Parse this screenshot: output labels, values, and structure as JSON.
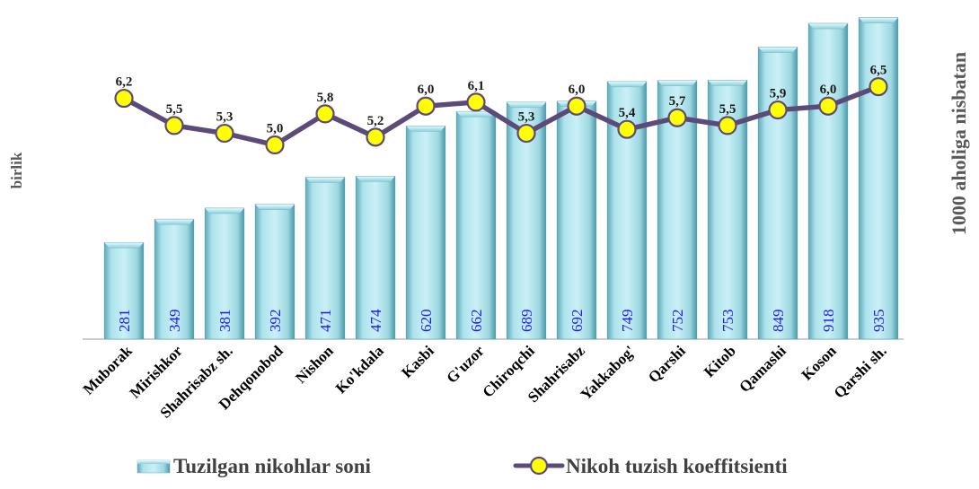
{
  "chart_data": {
    "type": "bar",
    "categories": [
      "Muborak",
      "Mirishkor",
      "Shahrisabz sh.",
      "Dehqonobod",
      "Nishon",
      "Ko'kdala",
      "Kasbi",
      "G'uzor",
      "Chiroqchi",
      "Shahrisabz",
      "Yakkabog'",
      "Qarshi",
      "Kitob",
      "Qamashi",
      "Koson",
      "Qarshi sh."
    ],
    "series": [
      {
        "name": "Tuzilgan nikohlar soni",
        "type": "bar",
        "axis": "left",
        "values": [
          281,
          349,
          381,
          392,
          471,
          474,
          620,
          662,
          689,
          692,
          749,
          752,
          753,
          849,
          918,
          935
        ],
        "labels": [
          "281",
          "349",
          "381",
          "392",
          "471",
          "474",
          "620",
          "662",
          "689",
          "692",
          "749",
          "752",
          "753",
          "849",
          "918",
          "935"
        ],
        "color": "#8fd0dc"
      },
      {
        "name": "Nikoh tuzish koeffitsienti",
        "type": "line",
        "axis": "right",
        "values": [
          6.2,
          5.5,
          5.3,
          5.0,
          5.8,
          5.2,
          6.0,
          6.1,
          5.3,
          6.0,
          5.4,
          5.7,
          5.5,
          5.9,
          6.0,
          6.5
        ],
        "labels": [
          "6,2",
          "5,5",
          "5,3",
          "5,0",
          "5,8",
          "5,2",
          "6,0",
          "6,1",
          "5,3",
          "6,0",
          "5,4",
          "5,7",
          "5,5",
          "5,9",
          "6,0",
          "6,5"
        ],
        "line_color": "#5c4a78",
        "marker_color": "#ffff00"
      }
    ],
    "ylabel": "birlik",
    "y2label": "1000 aholiga nisbatan",
    "ylim": [
      0,
      960
    ],
    "y2lim": [
      0,
      8.5
    ],
    "grid": false,
    "legend": "bottom"
  }
}
